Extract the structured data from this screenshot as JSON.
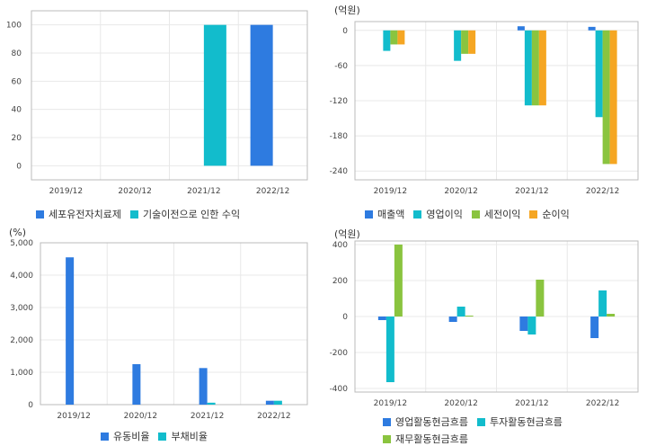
{
  "colors": {
    "blue": "#2e7be0",
    "cyan": "#12bccc",
    "green": "#8ac43f",
    "orange": "#f5a623",
    "grid": "#e8e8e8",
    "axis": "#bbbbbb"
  },
  "chart_data": [
    {
      "id": "revenue-source",
      "type": "bar",
      "unit_label": "",
      "categories": [
        "2019/12",
        "2020/12",
        "2021/12",
        "2022/12"
      ],
      "ylim": [
        -10,
        110
      ],
      "yticks": [
        0,
        20,
        40,
        60,
        80,
        100
      ],
      "grid": true,
      "legend_position": "bottom",
      "series": [
        {
          "name": "세포유전자치료제",
          "color": "#2e7be0",
          "values": [
            0,
            0,
            0,
            100
          ]
        },
        {
          "name": "기술이전으로 인한 수익",
          "color": "#12bccc",
          "values": [
            0,
            0,
            100,
            0
          ]
        }
      ]
    },
    {
      "id": "income-statement",
      "type": "bar",
      "unit_label": "(억원)",
      "categories": [
        "2019/12",
        "2020/12",
        "2021/12",
        "2022/12"
      ],
      "ylim": [
        -255,
        15
      ],
      "yticks": [
        0,
        -60,
        -120,
        -180,
        -240
      ],
      "grid": true,
      "legend_position": "bottom",
      "series": [
        {
          "name": "매출액",
          "color": "#2e7be0",
          "values": [
            0,
            0,
            7,
            6
          ]
        },
        {
          "name": "영업이익",
          "color": "#12bccc",
          "values": [
            -35,
            -52,
            -128,
            -148
          ]
        },
        {
          "name": "세전이익",
          "color": "#8ac43f",
          "values": [
            -24,
            -40,
            -128,
            -228
          ]
        },
        {
          "name": "순이익",
          "color": "#f5a623",
          "values": [
            -24,
            -40,
            -128,
            -228
          ]
        }
      ]
    },
    {
      "id": "ratios",
      "type": "bar",
      "unit_label": "(%)",
      "categories": [
        "2019/12",
        "2020/12",
        "2021/12",
        "2022/12"
      ],
      "ylim": [
        0,
        5000
      ],
      "yticks": [
        0,
        1000,
        2000,
        3000,
        4000,
        5000
      ],
      "ytick_labels": [
        "0",
        "1,000",
        "2,000",
        "3,000",
        "4,000",
        "5,000"
      ],
      "grid": true,
      "legend_position": "bottom",
      "series": [
        {
          "name": "유동비율",
          "color": "#2e7be0",
          "values": [
            4550,
            1250,
            1130,
            120
          ]
        },
        {
          "name": "부채비율",
          "color": "#12bccc",
          "values": [
            0,
            0,
            60,
            120
          ]
        }
      ]
    },
    {
      "id": "cash-flow",
      "type": "bar",
      "unit_label": "(억원)",
      "categories": [
        "2019/12",
        "2020/12",
        "2021/12",
        "2022/12"
      ],
      "ylim": [
        -420,
        420
      ],
      "yticks": [
        400,
        200,
        0,
        -200,
        -400
      ],
      "grid": true,
      "legend_position": "bottom",
      "series": [
        {
          "name": "영업활동현금흐름",
          "color": "#2e7be0",
          "values": [
            -20,
            -30,
            -80,
            -120
          ]
        },
        {
          "name": "투자활동현금흐름",
          "color": "#12bccc",
          "values": [
            -365,
            55,
            -100,
            145
          ]
        },
        {
          "name": "재무활동현금흐름",
          "color": "#8ac43f",
          "values": [
            400,
            5,
            205,
            15
          ]
        }
      ]
    }
  ]
}
